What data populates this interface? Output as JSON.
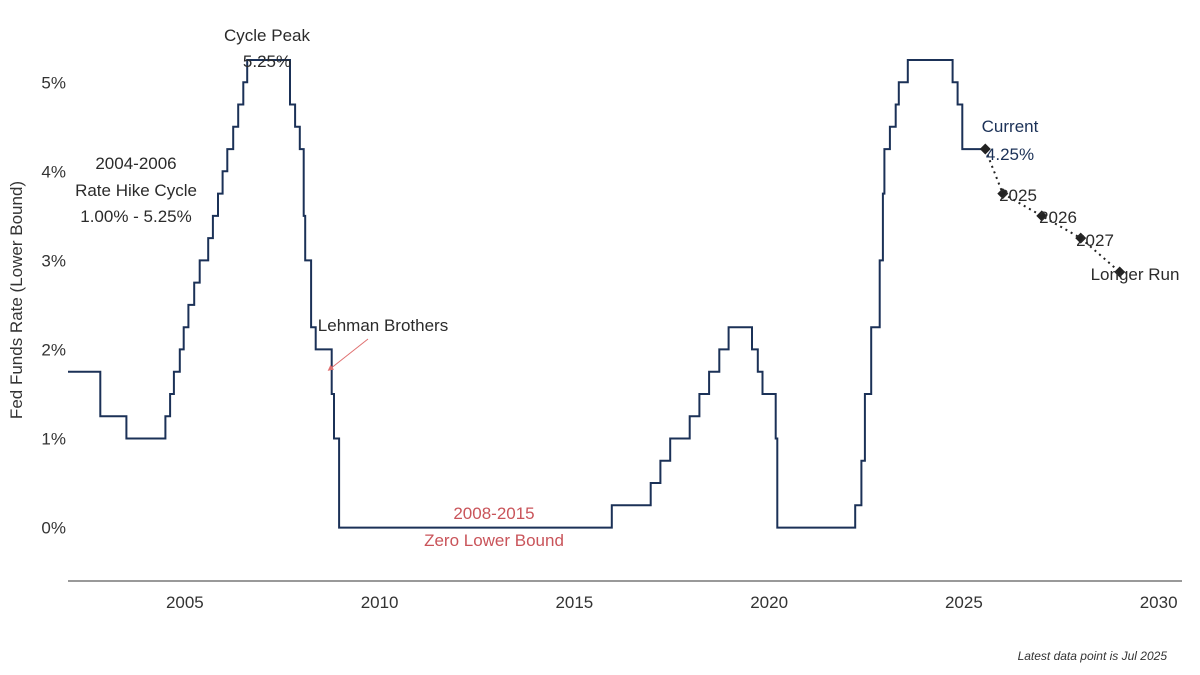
{
  "chart_data": {
    "type": "line",
    "ylabel": "Fed Funds Rate (Lower Bound)",
    "xlim": [
      2002,
      2030.6
    ],
    "ylim": [
      -0.006,
      0.0525
    ],
    "x_ticks": [
      2005,
      2010,
      2015,
      2020,
      2025,
      2030
    ],
    "y_ticks": [
      {
        "value": 0.0,
        "label": "0%"
      },
      {
        "value": 0.01,
        "label": "1%"
      },
      {
        "value": 0.02,
        "label": "2%"
      },
      {
        "value": 0.03,
        "label": "3%"
      },
      {
        "value": 0.04,
        "label": "4%"
      },
      {
        "value": 0.05,
        "label": "5%"
      }
    ],
    "grid": false,
    "series": [
      {
        "style": "step",
        "color": "#1b3157",
        "points": [
          [
            2002.0,
            0.0175
          ],
          [
            2002.83,
            0.0125
          ],
          [
            2003.5,
            0.01
          ],
          [
            2004.5,
            0.0125
          ],
          [
            2004.62,
            0.015
          ],
          [
            2004.72,
            0.0175
          ],
          [
            2004.87,
            0.02
          ],
          [
            2004.97,
            0.0225
          ],
          [
            2005.09,
            0.025
          ],
          [
            2005.24,
            0.0275
          ],
          [
            2005.38,
            0.03
          ],
          [
            2005.6,
            0.0325
          ],
          [
            2005.72,
            0.035
          ],
          [
            2005.85,
            0.0375
          ],
          [
            2005.97,
            0.04
          ],
          [
            2006.09,
            0.0425
          ],
          [
            2006.24,
            0.045
          ],
          [
            2006.37,
            0.0475
          ],
          [
            2006.5,
            0.05
          ],
          [
            2006.6,
            0.0525
          ],
          [
            2007.7,
            0.0475
          ],
          [
            2007.83,
            0.045
          ],
          [
            2007.95,
            0.0425
          ],
          [
            2008.05,
            0.035
          ],
          [
            2008.09,
            0.03
          ],
          [
            2008.24,
            0.0225
          ],
          [
            2008.36,
            0.02
          ],
          [
            2008.77,
            0.015
          ],
          [
            2008.83,
            0.01
          ],
          [
            2008.96,
            0.0
          ],
          [
            2015.96,
            0.0025
          ],
          [
            2016.96,
            0.005
          ],
          [
            2017.21,
            0.0075
          ],
          [
            2017.46,
            0.01
          ],
          [
            2017.96,
            0.0125
          ],
          [
            2018.21,
            0.015
          ],
          [
            2018.46,
            0.0175
          ],
          [
            2018.72,
            0.02
          ],
          [
            2018.96,
            0.0225
          ],
          [
            2019.56,
            0.02
          ],
          [
            2019.71,
            0.0175
          ],
          [
            2019.83,
            0.015
          ],
          [
            2020.17,
            0.01
          ],
          [
            2020.21,
            0.0
          ],
          [
            2022.21,
            0.0025
          ],
          [
            2022.37,
            0.0075
          ],
          [
            2022.46,
            0.015
          ],
          [
            2022.62,
            0.0225
          ],
          [
            2022.84,
            0.03
          ],
          [
            2022.92,
            0.0375
          ],
          [
            2022.96,
            0.0425
          ],
          [
            2023.1,
            0.045
          ],
          [
            2023.25,
            0.0475
          ],
          [
            2023.33,
            0.05
          ],
          [
            2023.56,
            0.0525
          ],
          [
            2024.71,
            0.05
          ],
          [
            2024.84,
            0.0475
          ],
          [
            2024.96,
            0.0425
          ],
          [
            2025.55,
            0.0425
          ]
        ]
      },
      {
        "style": "dotted",
        "color": "#222222",
        "points": [
          [
            2025.55,
            0.0425
          ],
          [
            2026.0,
            0.0375
          ],
          [
            2027.0,
            0.035
          ],
          [
            2028.0,
            0.0325
          ],
          [
            2029.0,
            0.0287
          ]
        ]
      }
    ],
    "annotations": {
      "cycle_peak": [
        "Cycle Peak",
        "5.25%"
      ],
      "hike_cycle": [
        "2004-2006",
        "Rate Hike Cycle",
        "1.00% - 5.25%"
      ],
      "lehman": "Lehman Brothers",
      "zlb": [
        "2008-2015",
        "Zero Lower Bound"
      ],
      "current": [
        "Current",
        "4.25%"
      ],
      "projections": [
        "2025",
        "2026",
        "2027",
        "Longer Run"
      ]
    },
    "colors": {
      "line": "#1b3157",
      "projection": "#222222",
      "zlb_text": "#c9545a",
      "lehman_arrow": "#e07070",
      "current_text": "#1b3157"
    }
  },
  "footnote": "Latest data point is Jul 2025"
}
